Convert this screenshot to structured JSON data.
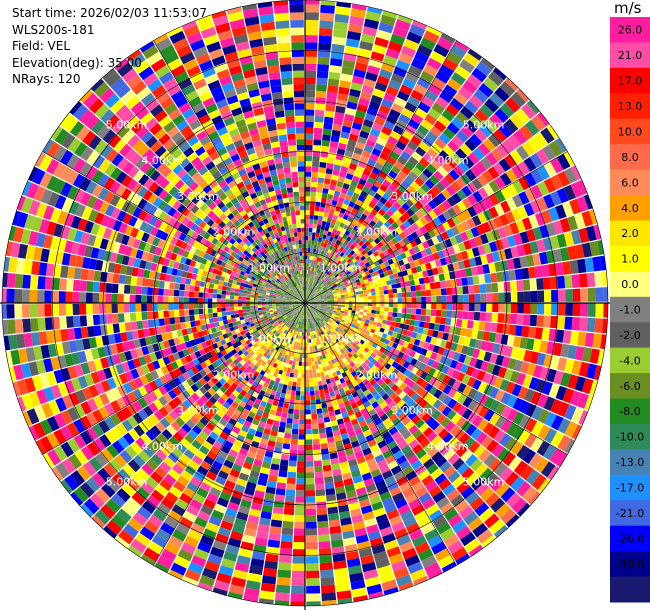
{
  "header": {
    "start_time": "Start time: 2026/02/03 11:53:07",
    "instrument": "WLS200s-181",
    "field": "Field: VEL",
    "elevation": "Elevation(deg): 35.00",
    "nrays": "NRays: 120"
  },
  "chart_data": {
    "type": "heatmap",
    "projection": "polar-ppi",
    "field": "VEL",
    "units": "m/s",
    "elevation_deg": 35.0,
    "n_rays": 120,
    "max_range_km": 6.0,
    "range_ring_labels": [
      "1.00km",
      "2.00km",
      "3.00km",
      "4.00km",
      "5.00km"
    ],
    "grid": true,
    "colorbar": {
      "title": "m/s",
      "tick_labels": [
        "26.0",
        "21.0",
        "17.0",
        "13.0",
        "10.0",
        "8.0",
        "6.0",
        "4.0",
        "2.0",
        "1.0",
        "0.0",
        "-1.0",
        "-2.0",
        "-4.0",
        "-6.0",
        "-8.0",
        "-10.0",
        "-13.0",
        "-17.0",
        "-21.0",
        "-26.0",
        "-30.0"
      ],
      "colors": [
        "#ff1ea0",
        "#ff4ca6",
        "#ff0000",
        "#ff2000",
        "#ff4a20",
        "#ff6a4a",
        "#ff8a5a",
        "#ffa000",
        "#ffe600",
        "#ffff00",
        "#ffff80",
        "#808080",
        "#606060",
        "#9acd32",
        "#6b8e23",
        "#228b22",
        "#2e8b57",
        "#4682b4",
        "#1e90ff",
        "#4169e1",
        "#0000ff",
        "#00008b",
        "#191970"
      ]
    },
    "regions": [
      {
        "range_km": [
          0,
          1.1
        ],
        "description": "near-field",
        "dominant": [
          "#808080",
          "#9acd32",
          "#6b8e23",
          "#228b22"
        ]
      },
      {
        "range_km": [
          0.5,
          1.6
        ],
        "description": "positive arc south-east",
        "dominant": [
          "#ffff00",
          "#ffe600",
          "#ffa000"
        ]
      },
      {
        "range_km": [
          1.6,
          6.0
        ],
        "description": "noise",
        "dominant": [
          "mixed"
        ]
      }
    ]
  }
}
